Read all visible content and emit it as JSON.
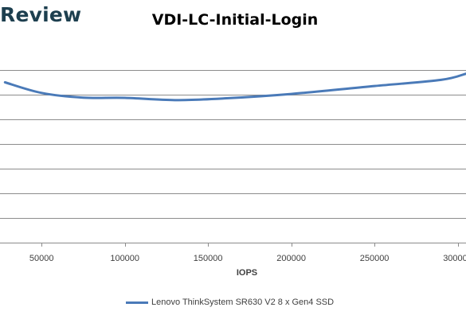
{
  "brand": {
    "text": "Review"
  },
  "chart_data": {
    "type": "line",
    "title": "VDI-LC-Initial-Login",
    "xlabel": "IOPS",
    "ylabel": "",
    "xlim": [
      25000,
      305000
    ],
    "ylim": [
      0,
      8
    ],
    "x_ticks": [
      50000,
      100000,
      150000,
      200000,
      250000,
      300000
    ],
    "x_tick_labels": [
      "50000",
      "100000",
      "150000",
      "200000",
      "250000",
      "300000"
    ],
    "y_gridlines": [
      1,
      2,
      3,
      4,
      5,
      6,
      7
    ],
    "grid": true,
    "legend": "bottom",
    "series": [
      {
        "name": "Lenovo ThinkSystem SR630 V2 8 x Gen4 SSD",
        "color": "#4a7ab8",
        "x": [
          28000,
          50000,
          75000,
          100000,
          130000,
          160000,
          200000,
          250000,
          290000,
          305000
        ],
        "y": [
          6.5,
          6.07,
          5.88,
          5.87,
          5.78,
          5.85,
          6.03,
          6.35,
          6.6,
          6.85
        ]
      }
    ]
  }
}
